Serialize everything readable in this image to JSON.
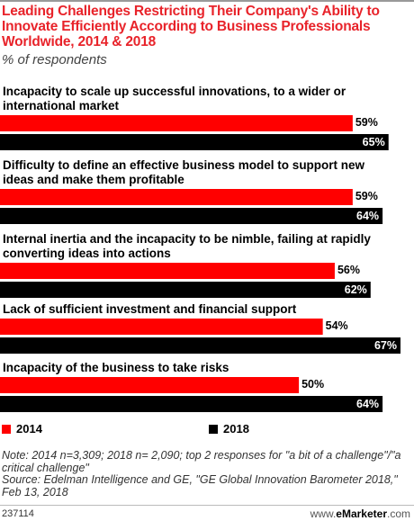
{
  "title": "Leading Challenges Restricting Their Company's Ability to Innovate Efficiently According to Business Professionals Worldwide, 2014 & 2018",
  "subtitle": "% of respondents",
  "colors": {
    "title": "#e8232a",
    "series_2014": "#ff0000",
    "series_2018": "#000000"
  },
  "chart_data": {
    "type": "bar",
    "orientation": "horizontal",
    "categories": [
      [
        "Incapacity to scale up successful innovations, to a wider or",
        "international market"
      ],
      [
        "Difficulty to define an effective business model to support new",
        "ideas and make them profitable"
      ],
      [
        "Internal inertia and the incapacity to be nimble, failing at rapidly",
        "converting ideas into actions"
      ],
      [
        "Lack of sufficient investment and financial support"
      ],
      [
        "Incapacity of the business to take risks"
      ]
    ],
    "series": [
      {
        "name": "2014",
        "color": "#ff0000",
        "values": [
          59,
          59,
          56,
          54,
          50
        ],
        "labels": [
          "59%",
          "59%",
          "56%",
          "54%",
          "50%"
        ]
      },
      {
        "name": "2018",
        "color": "#000000",
        "values": [
          65,
          64,
          62,
          67,
          64
        ],
        "labels": [
          "65%",
          "64%",
          "62%",
          "67%",
          "64%"
        ]
      }
    ],
    "xlim": [
      0,
      67
    ],
    "legend_position": "bottom-left"
  },
  "legend": {
    "item_2014": "2014",
    "item_2018": "2018"
  },
  "note": "Note: 2014 n=3,309; 2018 n= 2,090; top 2 responses for \"a bit of a challenge\"/\"a critical challenge\"",
  "source": "Source: Edelman Intelligence and GE, \"GE Global Innovation Barometer 2018,\" Feb 13, 2018",
  "footer": {
    "chart_id": "237114",
    "brand_prefix": "www.",
    "brand_name": "eMarketer",
    "brand_suffix": ".com"
  }
}
